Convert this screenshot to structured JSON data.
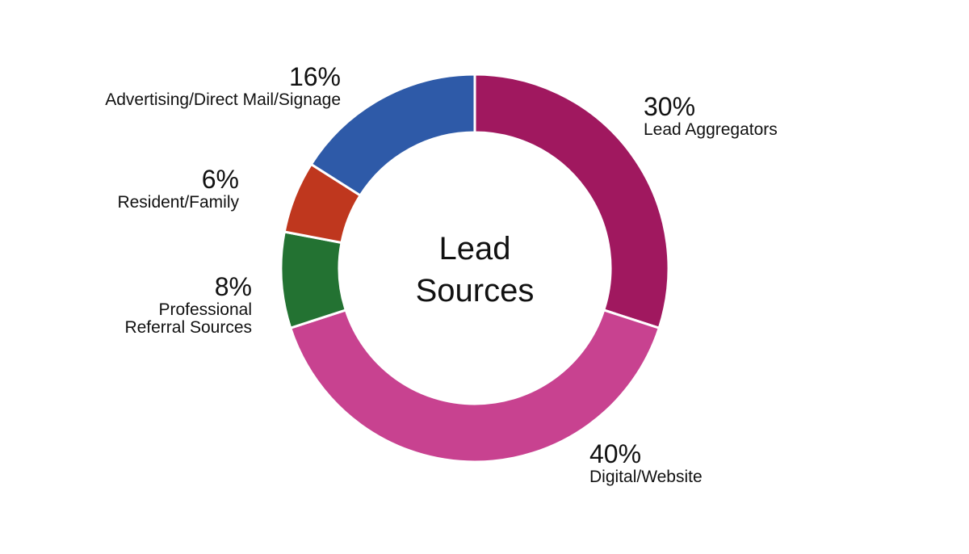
{
  "chart_data": {
    "type": "donut",
    "title": "Lead Sources",
    "categories": [
      "Lead Aggregators",
      "Digital/Website",
      "Professional Referral Sources",
      "Resident/Family",
      "Advertising/Direct Mail/Signage"
    ],
    "values": [
      30,
      40,
      8,
      6,
      16
    ],
    "value_labels": [
      "30%",
      "40%",
      "8%",
      "6%",
      "16%"
    ],
    "colors": [
      "#a0185f",
      "#c84290",
      "#237232",
      "#bf371e",
      "#2e5aa8"
    ]
  }
}
